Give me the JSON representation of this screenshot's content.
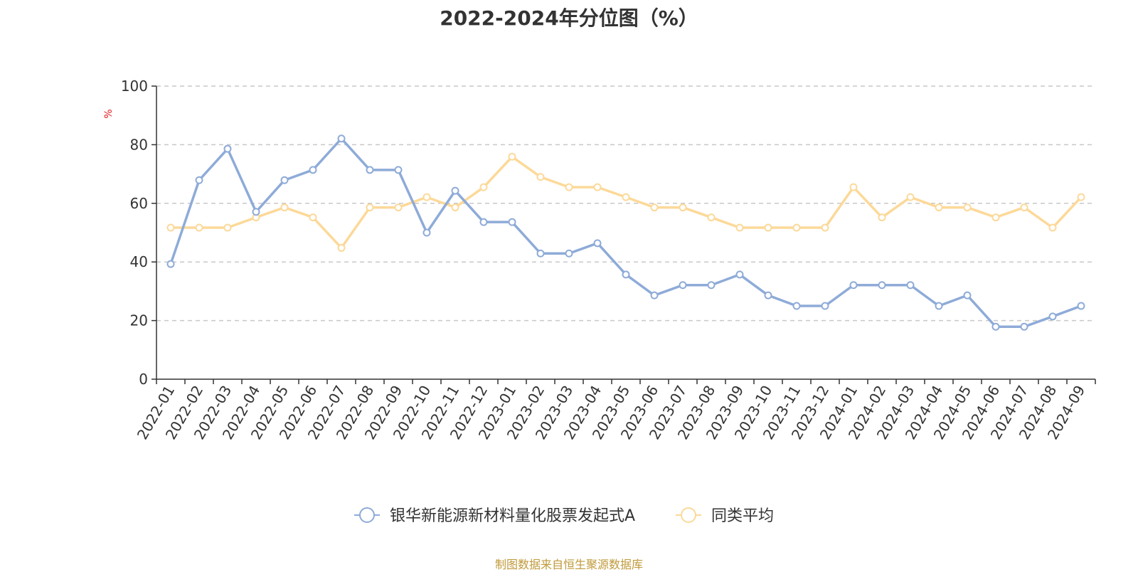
{
  "source_note": "制图数据来自恒生聚源数据库",
  "colors": {
    "series_a": "#8eabd8",
    "series_b": "#fcd999",
    "unit": "#e02020",
    "source": "#c09a3a",
    "grid": "#c8c8c8",
    "axis": "#333333"
  },
  "chart_data": {
    "type": "line",
    "title": "2022-2024年分位图（%）",
    "ylabel": "%",
    "ylim": [
      0,
      100
    ],
    "yticks": [
      "0",
      "20",
      "40",
      "60",
      "80",
      "100"
    ],
    "grid": "horizontal-dashed",
    "legend_position": "bottom-center",
    "categories": [
      "2022-01",
      "2022-02",
      "2022-03",
      "2022-04",
      "2022-05",
      "2022-06",
      "2022-07",
      "2022-08",
      "2022-09",
      "2022-10",
      "2022-11",
      "2022-12",
      "2023-01",
      "2023-02",
      "2023-03",
      "2023-04",
      "2023-05",
      "2023-06",
      "2023-07",
      "2023-08",
      "2023-09",
      "2023-10",
      "2023-11",
      "2023-12",
      "2024-01",
      "2024-02",
      "2024-03",
      "2024-04",
      "2024-05",
      "2024-06",
      "2024-07",
      "2024-08",
      "2024-09"
    ],
    "series": [
      {
        "name": "银华新能源新材料量化股票发起式A",
        "values": [
          39.3,
          67.9,
          78.6,
          57.1,
          67.9,
          71.4,
          82.1,
          71.4,
          71.4,
          50.0,
          64.3,
          53.6,
          53.6,
          42.9,
          42.9,
          46.4,
          35.7,
          28.6,
          32.1,
          32.1,
          35.7,
          28.6,
          25.0,
          25.0,
          32.1,
          32.1,
          32.1,
          25.0,
          28.6,
          17.9,
          17.9,
          21.4,
          25.0
        ]
      },
      {
        "name": "同类平均",
        "values": [
          51.7,
          51.7,
          51.7,
          55.2,
          58.6,
          55.2,
          44.8,
          58.6,
          58.6,
          62.1,
          58.6,
          65.5,
          75.9,
          69.0,
          65.5,
          65.5,
          62.1,
          58.6,
          58.6,
          55.2,
          51.7,
          51.7,
          51.7,
          51.7,
          65.5,
          55.2,
          62.1,
          58.6,
          58.6,
          55.2,
          58.6,
          51.7,
          62.1
        ]
      }
    ]
  }
}
